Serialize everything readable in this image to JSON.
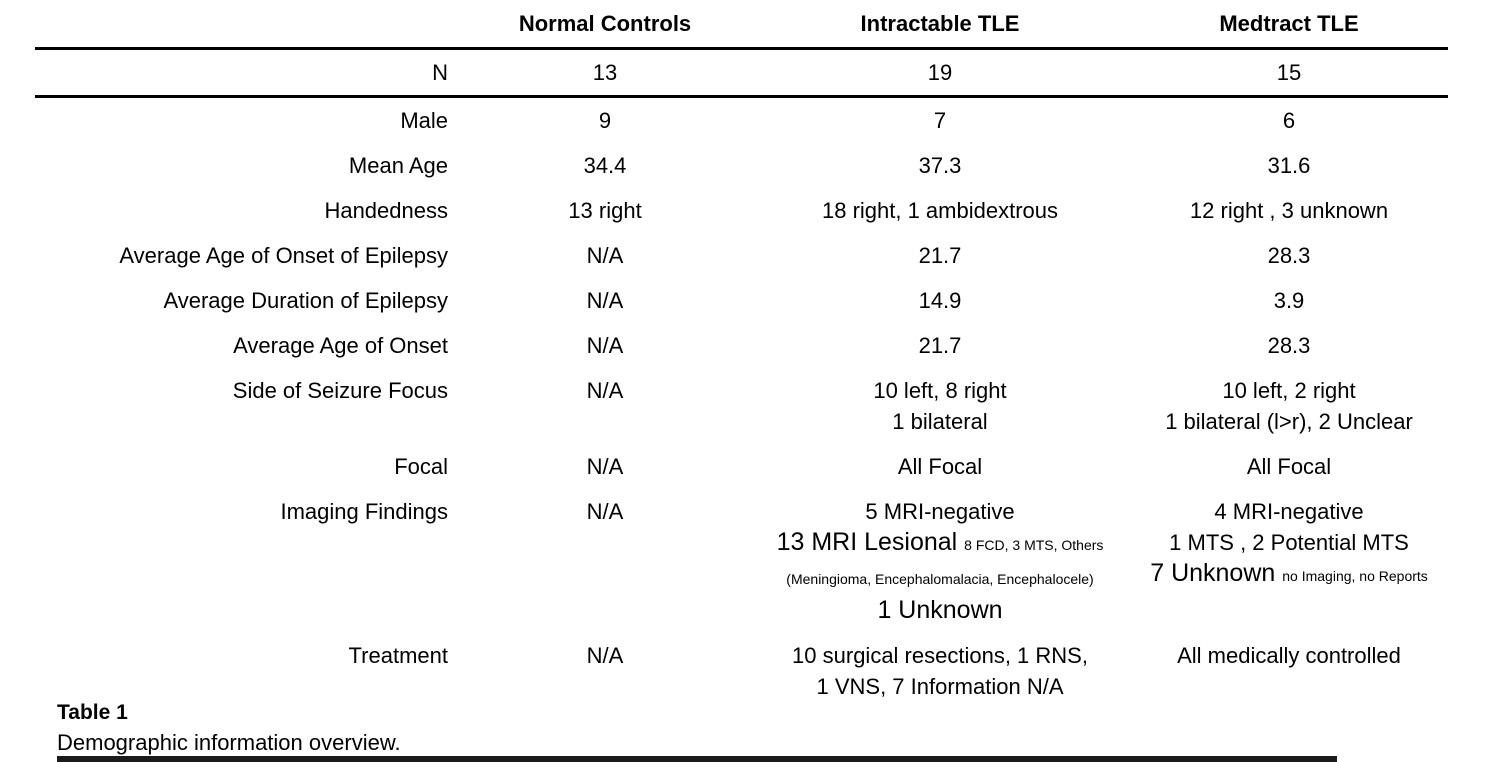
{
  "page": {
    "background": "#ffffff",
    "text_color": "#000000"
  },
  "chart_data": {
    "type": "table",
    "title": "Table 1",
    "subtitle": "Demographic information overview.",
    "columns": [
      "",
      "Normal Controls",
      "Intractable TLE",
      "Medtract TLE"
    ]
  },
  "table": {
    "columns": [
      "",
      "Normal Controls",
      "Intractable TLE",
      "Medtract TLE"
    ],
    "rows": [
      {
        "label": "N",
        "divider_below": true,
        "cells": [
          [
            [
              {
                "t": "13"
              }
            ]
          ],
          [
            [
              {
                "t": "19"
              }
            ]
          ],
          [
            [
              {
                "t": "15"
              }
            ]
          ]
        ]
      },
      {
        "label": "Male",
        "cells": [
          [
            [
              {
                "t": "9"
              }
            ]
          ],
          [
            [
              {
                "t": "7"
              }
            ]
          ],
          [
            [
              {
                "t": "6"
              }
            ]
          ]
        ]
      },
      {
        "label": "Mean Age",
        "cells": [
          [
            [
              {
                "t": "34.4"
              }
            ]
          ],
          [
            [
              {
                "t": "37.3"
              }
            ]
          ],
          [
            [
              {
                "t": "31.6"
              }
            ]
          ]
        ]
      },
      {
        "label": "Handedness",
        "cells": [
          [
            [
              {
                "t": "13 right"
              }
            ]
          ],
          [
            [
              {
                "t": "18 right, 1 ambidextrous"
              }
            ]
          ],
          [
            [
              {
                "t": "12 right , 3 unknown"
              }
            ]
          ]
        ]
      },
      {
        "label": "Average Age of Onset of Epilepsy",
        "cells": [
          [
            [
              {
                "t": "N/A"
              }
            ]
          ],
          [
            [
              {
                "t": "21.7"
              }
            ]
          ],
          [
            [
              {
                "t": "28.3"
              }
            ]
          ]
        ]
      },
      {
        "label": "Average Duration of Epilepsy",
        "cells": [
          [
            [
              {
                "t": "N/A"
              }
            ]
          ],
          [
            [
              {
                "t": "14.9"
              }
            ]
          ],
          [
            [
              {
                "t": "3.9"
              }
            ]
          ]
        ]
      },
      {
        "label": "Average Age of Onset",
        "cells": [
          [
            [
              {
                "t": "N/A"
              }
            ]
          ],
          [
            [
              {
                "t": "21.7"
              }
            ]
          ],
          [
            [
              {
                "t": "28.3"
              }
            ]
          ]
        ]
      },
      {
        "label": "Side of Seizure Focus",
        "cells": [
          [
            [
              {
                "t": "N/A"
              }
            ]
          ],
          [
            [
              {
                "t": "10 left, 8 right"
              }
            ],
            [
              {
                "t": "1 bilateral"
              }
            ]
          ],
          [
            [
              {
                "t": "10 left, 2 right"
              }
            ],
            [
              {
                "t": "1 bilateral (l>r), 2 Unclear"
              }
            ]
          ]
        ]
      },
      {
        "label": "Focal",
        "cells": [
          [
            [
              {
                "t": "N/A"
              }
            ]
          ],
          [
            [
              {
                "t": "All Focal"
              }
            ]
          ],
          [
            [
              {
                "t": "All Focal"
              }
            ]
          ]
        ]
      },
      {
        "label": "Imaging Findings",
        "cells": [
          [
            [
              {
                "t": "N/A"
              }
            ]
          ],
          [
            [
              {
                "t": "5 MRI-negative"
              }
            ],
            [
              {
                "t": "13 MRI Lesional ",
                "lg": true
              },
              {
                "t": "8 FCD, 3 MTS, Others",
                "small": true
              }
            ],
            [
              {
                "t": "(Meningioma, Encephalomalacia, Encephalocele)",
                "small": true
              }
            ],
            [
              {
                "t": "1 Unknown",
                "lg": true
              }
            ]
          ],
          [
            [
              {
                "t": "4 MRI-negative"
              }
            ],
            [
              {
                "t": "1 MTS , 2 Potential MTS"
              }
            ],
            [
              {
                "t": "7 Unknown ",
                "lg": true
              },
              {
                "t": "no Imaging, no Reports",
                "small": true
              }
            ]
          ]
        ]
      },
      {
        "label": "Treatment",
        "cells": [
          [
            [
              {
                "t": "N/A"
              }
            ]
          ],
          [
            [
              {
                "t": "10 surgical resections, 1 RNS,"
              }
            ],
            [
              {
                "t": "1 VNS, 7 Information N/A"
              }
            ]
          ],
          [
            [
              {
                "t": "All medically controlled"
              }
            ]
          ]
        ]
      }
    ]
  },
  "caption": {
    "title": "Table 1",
    "description": "Demographic information overview."
  }
}
